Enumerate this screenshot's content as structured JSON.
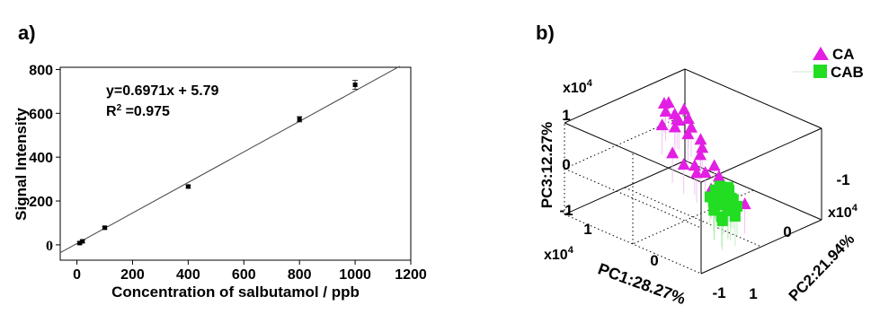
{
  "panels": {
    "a_label": "a)",
    "b_label": "b)"
  },
  "chart_data": [
    {
      "type": "scatter",
      "xlabel": "Concentration of salbutamol / ppb",
      "ylabel": "Signal Intensity",
      "xlim": [
        -60,
        1200
      ],
      "ylim": [
        -70,
        810
      ],
      "xticks": [
        0,
        200,
        400,
        600,
        800,
        1000,
        1200
      ],
      "yticks": [
        0,
        200,
        400,
        600,
        800
      ],
      "x": [
        10,
        20,
        100,
        400,
        800,
        1000
      ],
      "y": [
        8,
        16,
        78,
        266,
        573,
        730
      ],
      "yerr": [
        6,
        6,
        6,
        6,
        12,
        20
      ],
      "fit": {
        "slope": 0.6971,
        "intercept": 5.79,
        "x_range": [
          -60,
          1160
        ]
      },
      "annotation": {
        "equation": "y=0.6971x + 5.79",
        "r2_prefix": "R",
        "r2_sup": "2",
        "r2_value": " =0.975"
      },
      "grid": false,
      "colors": {
        "marker": "#000000",
        "fit_line": "#444444"
      }
    },
    {
      "type": "scatter",
      "projection": "3d",
      "xlabel": "PC1:28.27%",
      "ylabel": "PC2:21.94%",
      "zlabel": "PC3:12.27%",
      "scale_label_base": "x10",
      "scale_label_exp": "4",
      "axis_ticks": {
        "pc1": [
          "1",
          "0",
          "-1"
        ],
        "pc2": [
          "1",
          "0",
          "-1"
        ],
        "pc3": [
          "1",
          "0",
          "-1"
        ]
      },
      "legend_position": "top-right",
      "series": [
        {
          "name": "CA",
          "marker": "triangle",
          "color": "#e31fe3",
          "points": [
            [
              0.74,
              0.36,
              0.8
            ],
            [
              0.78,
              0.48,
              0.72
            ],
            [
              0.7,
              0.34,
              0.66
            ],
            [
              0.62,
              0.4,
              0.62
            ],
            [
              0.66,
              0.6,
              0.58
            ],
            [
              0.56,
              0.4,
              0.52
            ],
            [
              0.58,
              0.58,
              0.44
            ],
            [
              0.64,
              0.46,
              0.46
            ],
            [
              0.7,
              0.28,
              0.4
            ],
            [
              0.52,
              0.56,
              0.3
            ],
            [
              0.6,
              0.38,
              0.36
            ],
            [
              0.48,
              0.46,
              0.24
            ],
            [
              0.4,
              0.58,
              0.1
            ],
            [
              0.46,
              0.18,
              0.0
            ],
            [
              0.36,
              0.56,
              -0.04
            ],
            [
              0.3,
              0.46,
              -0.1
            ],
            [
              0.24,
              0.3,
              -0.2
            ],
            [
              0.4,
              0.3,
              -0.28
            ],
            [
              0.12,
              0.34,
              -0.3
            ],
            [
              0.2,
              0.58,
              -0.34
            ],
            [
              0.06,
              0.5,
              -0.44
            ],
            [
              0.3,
              0.4,
              -0.46
            ],
            [
              0.0,
              0.3,
              -0.56
            ],
            [
              -0.06,
              0.44,
              -0.66
            ],
            [
              -0.02,
              0.52,
              -0.74
            ],
            [
              -0.12,
              0.36,
              -0.84
            ],
            [
              -0.3,
              0.52,
              -0.82
            ]
          ]
        },
        {
          "name": "CAB",
          "marker": "square",
          "color": "#22dd22",
          "points": [
            [
              -0.55,
              -0.18,
              0.14
            ],
            [
              -0.6,
              -0.1,
              0.1
            ],
            [
              -0.52,
              -0.22,
              0.06
            ],
            [
              -0.64,
              -0.2,
              0.04
            ],
            [
              -0.58,
              -0.06,
              0.0
            ],
            [
              -0.48,
              -0.14,
              -0.02
            ],
            [
              -0.7,
              -0.16,
              -0.04
            ],
            [
              -0.62,
              -0.26,
              -0.06
            ],
            [
              -0.54,
              -0.02,
              -0.1
            ],
            [
              -0.46,
              -0.24,
              -0.12
            ],
            [
              -0.66,
              -0.08,
              -0.14
            ],
            [
              -0.58,
              -0.3,
              -0.16
            ],
            [
              -0.5,
              -0.08,
              -0.2
            ],
            [
              -0.72,
              -0.24,
              -0.22
            ],
            [
              -0.6,
              -0.18,
              -0.24
            ],
            [
              -0.44,
              -0.16,
              -0.28
            ],
            [
              -0.68,
              -0.04,
              -0.3
            ],
            [
              -0.56,
              -0.28,
              -0.32
            ],
            [
              -0.62,
              -0.12,
              -0.36
            ],
            [
              -0.5,
              -0.22,
              -0.4
            ],
            [
              -0.74,
              -0.14,
              -0.42
            ],
            [
              -0.58,
              -0.04,
              -0.46
            ],
            [
              -0.66,
              -0.26,
              -0.5
            ],
            [
              -0.54,
              -0.14,
              -0.56
            ]
          ]
        }
      ]
    }
  ]
}
